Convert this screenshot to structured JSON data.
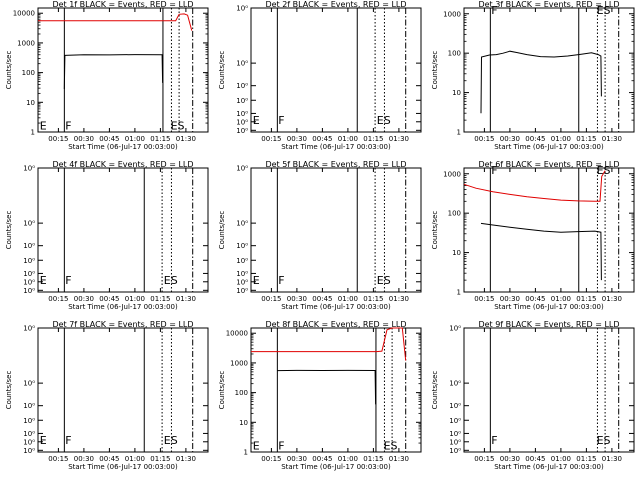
{
  "figure": {
    "xlabel": "Start Time (06-Jul-17 00:03:00)",
    "ylabel": "Counts/sec",
    "x_tick_labels": [
      "00:15",
      "00:30",
      "00:45",
      "01:00",
      "01:15",
      "01:30"
    ],
    "x_ticks_minutes": [
      15,
      30,
      45,
      60,
      75,
      90
    ],
    "x_range_minutes": [
      3,
      103
    ],
    "colors": {
      "events": "#000000",
      "lld": "#e00000",
      "axes": "#000000",
      "background": "#ffffff"
    }
  },
  "chart_data": [
    {
      "type": "line",
      "title": "Det 1f BLACK = Events, RED = LLD",
      "scale": "log",
      "ylim": [
        1,
        15000
      ],
      "y_tick_labels": [
        "1",
        "10",
        "100",
        "1000",
        "10000"
      ],
      "y_tick_values": [
        1,
        10,
        100,
        1000,
        10000
      ],
      "lines": {
        "solid": [
          18.5,
          76.5
        ],
        "dotted": [
          81.5,
          86
        ],
        "dashdot": [
          94
        ]
      },
      "markers": [
        {
          "text": "E",
          "x": 4,
          "y": 1.2
        },
        {
          "text": "F",
          "x": 19,
          "y": 1.2
        },
        {
          "text": "ES",
          "x": 81,
          "y": 1.2
        }
      ],
      "series": [
        {
          "name": "Events",
          "color": "#000000",
          "points": [
            [
              18.5,
              28
            ],
            [
              18.8,
              380
            ],
            [
              30,
              400
            ],
            [
              45,
              395
            ],
            [
              60,
              405
            ],
            [
              76,
              400
            ],
            [
              76.3,
              45
            ]
          ]
        },
        {
          "name": "LLD",
          "color": "#e00000",
          "points": [
            [
              3,
              5600
            ],
            [
              30,
              5600
            ],
            [
              60,
              5600
            ],
            [
              84,
              5600
            ],
            [
              86,
              9200
            ],
            [
              89,
              9500
            ],
            [
              91,
              8600
            ],
            [
              93.5,
              2600
            ]
          ]
        }
      ]
    },
    {
      "type": "line",
      "title": "Det 2f BLACK = Events, RED = LLD",
      "scale": "log",
      "ylim": [
        0.8,
        12
      ],
      "y_tick_labels": [
        "10⁰",
        "10⁰",
        "10⁰",
        "10⁰",
        "10⁰",
        "10⁰",
        "10⁰"
      ],
      "y_tick_values": [
        0.83,
        1.0,
        1.2,
        1.6,
        2.2,
        3.6,
        12
      ],
      "lines": {
        "solid": [
          18.5,
          65.5
        ],
        "dotted": [
          76,
          81.5
        ],
        "dashdot": [
          94
        ]
      },
      "markers": [
        {
          "text": "E",
          "x": 4,
          "y": 0.95
        },
        {
          "text": "F",
          "x": 19,
          "y": 0.95
        },
        {
          "text": "ES",
          "x": 77,
          "y": 0.95
        }
      ],
      "series": []
    },
    {
      "type": "line",
      "title": "Det 3f BLACK = Events, RED = LLD",
      "scale": "log",
      "ylim": [
        1,
        1400
      ],
      "y_tick_labels": [
        "1",
        "10",
        "100",
        "1000"
      ],
      "y_tick_values": [
        1,
        10,
        100,
        1000
      ],
      "lines": {
        "solid": [
          18.5,
          70.5
        ],
        "dotted": [
          81.5,
          86
        ],
        "dashdot": [
          94
        ]
      },
      "markers": [
        {
          "text": "F",
          "x": 19,
          "y": 1000
        },
        {
          "text": "ES",
          "x": 81,
          "y": 1000
        }
      ],
      "series": [
        {
          "name": "Events",
          "color": "#000000",
          "points": [
            [
              13,
              3
            ],
            [
              13.3,
              80
            ],
            [
              18,
              90
            ],
            [
              22,
              92
            ],
            [
              26,
              100
            ],
            [
              30,
              112
            ],
            [
              34,
              104
            ],
            [
              40,
              92
            ],
            [
              48,
              82
            ],
            [
              56,
              80
            ],
            [
              64,
              85
            ],
            [
              72,
              94
            ],
            [
              78,
              102
            ],
            [
              82,
              92
            ],
            [
              83.5,
              85
            ],
            [
              83.8,
              8
            ]
          ]
        }
      ]
    },
    {
      "type": "line",
      "title": "Det 4f BLACK = Events, RED = LLD",
      "scale": "log",
      "ylim": [
        0.8,
        12
      ],
      "y_tick_labels": [
        "10⁰",
        "10⁰",
        "10⁰",
        "10⁰",
        "10⁰",
        "10⁰",
        "10⁰"
      ],
      "y_tick_values": [
        0.83,
        1.0,
        1.2,
        1.6,
        2.2,
        3.6,
        12
      ],
      "lines": {
        "solid": [
          18.5,
          65.5
        ],
        "dotted": [
          76,
          81.5
        ],
        "dashdot": [
          94
        ]
      },
      "markers": [
        {
          "text": "E",
          "x": 4,
          "y": 0.95
        },
        {
          "text": "F",
          "x": 19,
          "y": 0.95
        },
        {
          "text": "ES",
          "x": 77,
          "y": 0.95
        }
      ],
      "series": []
    },
    {
      "type": "line",
      "title": "Det 5f BLACK = Events, RED = LLD",
      "scale": "log",
      "ylim": [
        0.8,
        12
      ],
      "y_tick_labels": [
        "10⁰",
        "10⁰",
        "10⁰",
        "10⁰",
        "10⁰",
        "10⁰",
        "10⁰"
      ],
      "y_tick_values": [
        0.83,
        1.0,
        1.2,
        1.6,
        2.2,
        3.6,
        12
      ],
      "lines": {
        "solid": [
          18.5,
          65.5
        ],
        "dotted": [
          76,
          81.5
        ],
        "dashdot": [
          94
        ]
      },
      "markers": [
        {
          "text": "E",
          "x": 4,
          "y": 0.95
        },
        {
          "text": "F",
          "x": 19,
          "y": 0.95
        },
        {
          "text": "ES",
          "x": 77,
          "y": 0.95
        }
      ],
      "series": []
    },
    {
      "type": "line",
      "title": "Det 6f BLACK = Events, RED = LLD",
      "scale": "log",
      "ylim": [
        1,
        1400
      ],
      "y_tick_labels": [
        "1",
        "10",
        "100",
        "1000"
      ],
      "y_tick_values": [
        1,
        10,
        100,
        1000
      ],
      "lines": {
        "solid": [
          18.5,
          70.5
        ],
        "dotted": [
          81.5,
          86
        ],
        "dashdot": [
          94
        ]
      },
      "markers": [
        {
          "text": "F",
          "x": 19,
          "y": 1000
        },
        {
          "text": "ES",
          "x": 81,
          "y": 1000
        }
      ],
      "series": [
        {
          "name": "Events",
          "color": "#000000",
          "points": [
            [
              13,
              55
            ],
            [
              20,
              50
            ],
            [
              30,
              44
            ],
            [
              40,
              39
            ],
            [
              50,
              35
            ],
            [
              60,
              33
            ],
            [
              70,
              34
            ],
            [
              80,
              35
            ],
            [
              83.5,
              33
            ],
            [
              83.8,
              2
            ]
          ]
        },
        {
          "name": "LLD",
          "color": "#e00000",
          "points": [
            [
              3,
              540
            ],
            [
              10,
              430
            ],
            [
              20,
              350
            ],
            [
              30,
              300
            ],
            [
              40,
              260
            ],
            [
              50,
              235
            ],
            [
              60,
              215
            ],
            [
              70,
              205
            ],
            [
              80,
              200
            ],
            [
              83,
              200
            ],
            [
              84,
              850
            ],
            [
              86,
              1200
            ]
          ]
        }
      ]
    },
    {
      "type": "line",
      "title": "Det 7f BLACK = Events, RED = LLD",
      "scale": "log",
      "ylim": [
        0.8,
        12
      ],
      "y_tick_labels": [
        "10⁰",
        "10⁰",
        "10⁰",
        "10⁰",
        "10⁰",
        "10⁰",
        "10⁰"
      ],
      "y_tick_values": [
        0.83,
        1.0,
        1.2,
        1.6,
        2.2,
        3.6,
        12
      ],
      "lines": {
        "solid": [
          18.5,
          65.5
        ],
        "dotted": [
          76,
          81.5
        ],
        "dashdot": [
          94
        ]
      },
      "markers": [
        {
          "text": "E",
          "x": 4,
          "y": 0.95
        },
        {
          "text": "F",
          "x": 19,
          "y": 0.95
        },
        {
          "text": "ES",
          "x": 77,
          "y": 0.95
        }
      ],
      "series": []
    },
    {
      "type": "line",
      "title": "Det 8f BLACK = Events, RED = LLD",
      "scale": "log",
      "ylim": [
        1,
        15000
      ],
      "y_tick_labels": [
        "1",
        "10",
        "100",
        "1000",
        "10000"
      ],
      "y_tick_values": [
        1,
        10,
        100,
        1000,
        10000
      ],
      "lines": {
        "solid": [
          18.5,
          76.5
        ],
        "dotted": [
          81.5,
          86
        ],
        "dashdot": [
          94
        ]
      },
      "markers": [
        {
          "text": "E",
          "x": 4,
          "y": 1.2
        },
        {
          "text": "F",
          "x": 19,
          "y": 1.2
        },
        {
          "text": "ES",
          "x": 81,
          "y": 1.2
        }
      ],
      "series": [
        {
          "name": "Events",
          "color": "#000000",
          "points": [
            [
              18.5,
              550
            ],
            [
              30,
              560
            ],
            [
              45,
              555
            ],
            [
              60,
              560
            ],
            [
              76,
              555
            ],
            [
              76.3,
              40
            ]
          ]
        },
        {
          "name": "LLD",
          "color": "#e00000",
          "points": [
            [
              3,
              2400
            ],
            [
              30,
              2400
            ],
            [
              60,
              2400
            ],
            [
              77,
              2400
            ],
            [
              80,
              2500
            ],
            [
              83,
              13000
            ],
            [
              86,
              15000
            ],
            [
              92,
              15000
            ],
            [
              94,
              1200
            ]
          ]
        }
      ]
    },
    {
      "type": "line",
      "title": "Det 9f BLACK = Events, RED = LLD",
      "scale": "log",
      "ylim": [
        0.8,
        12
      ],
      "y_tick_labels": [
        "10⁰",
        "10⁰",
        "10⁰",
        "10⁰",
        "10⁰",
        "10⁰",
        "10⁰"
      ],
      "y_tick_values": [
        0.83,
        1.0,
        1.2,
        1.6,
        2.2,
        3.6,
        12
      ],
      "lines": {
        "solid": [
          18.5
        ],
        "dotted": [
          81.5,
          86
        ],
        "dashdot": [
          94
        ]
      },
      "markers": [
        {
          "text": "F",
          "x": 19,
          "y": 0.95
        },
        {
          "text": "ES",
          "x": 81,
          "y": 0.95
        }
      ],
      "series": []
    }
  ]
}
